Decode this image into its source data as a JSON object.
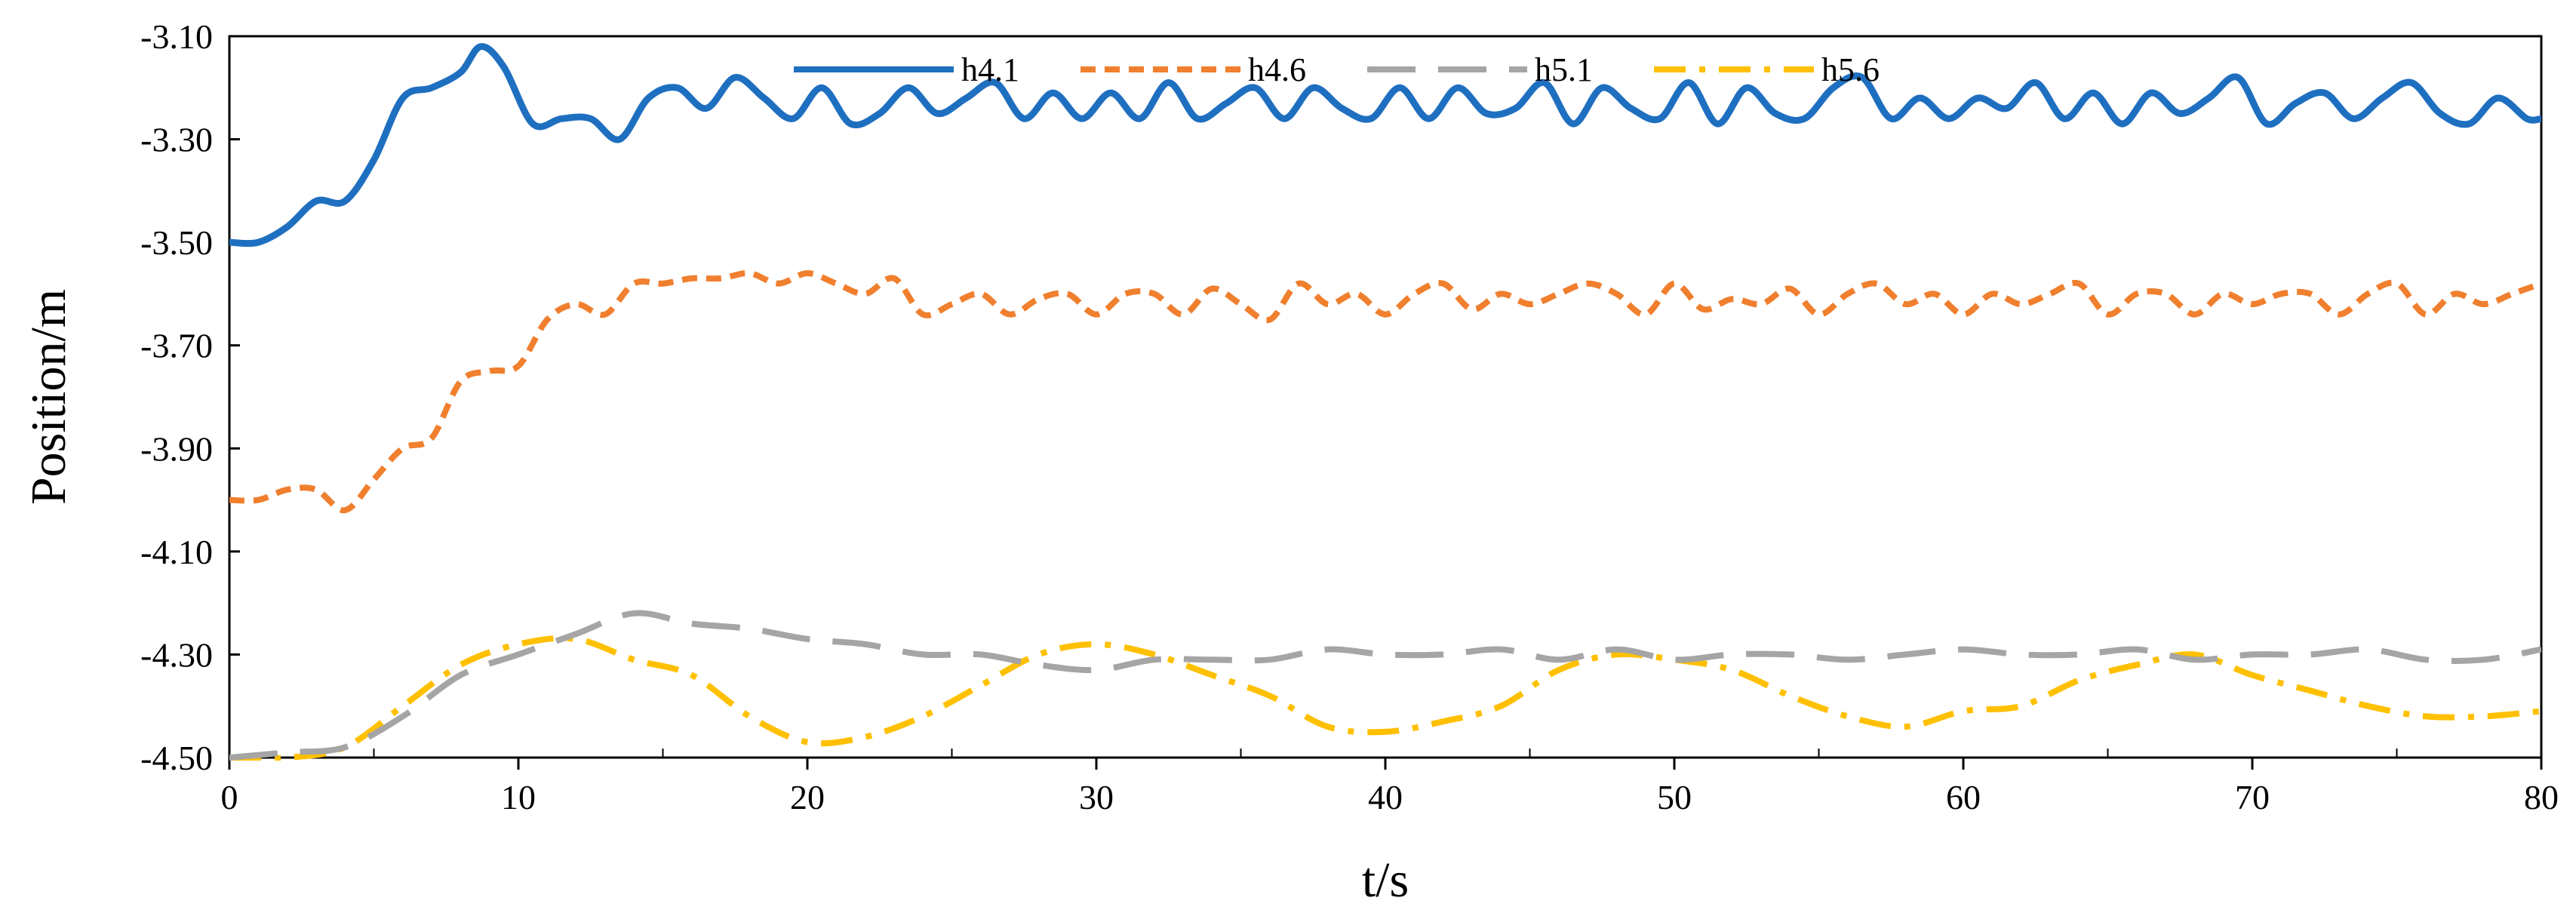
{
  "chart_data": {
    "type": "line",
    "title": "",
    "xlabel": "t/s",
    "ylabel": "Position/m",
    "xlim": [
      0,
      80
    ],
    "ylim": [
      -4.5,
      -3.1
    ],
    "x_ticks": [
      0,
      10,
      20,
      30,
      40,
      50,
      60,
      70,
      80
    ],
    "x_tick_labels": [
      "0",
      "10",
      "20",
      "30",
      "40",
      "50",
      "60",
      "70",
      "80"
    ],
    "y_ticks": [
      -3.1,
      -3.3,
      -3.5,
      -3.7,
      -3.9,
      -4.1,
      -4.3,
      -4.5
    ],
    "y_tick_labels": [
      "-3.10",
      "-3.30",
      "-3.50",
      "-3.70",
      "-3.90",
      "-4.10",
      "-4.30",
      "-4.50"
    ],
    "grid": false,
    "legend_position": "top-center",
    "series": [
      {
        "name": "h4.1",
        "color": "#1f6fc0",
        "dash": "solid",
        "x": [
          0,
          1,
          2,
          3,
          4,
          5,
          6,
          7,
          8,
          8.7,
          9.5,
          10.5,
          11.5,
          12.5,
          13.5,
          14.5,
          15.5,
          16.5,
          17.5,
          18.5,
          19.5,
          20.5,
          21.5,
          22.5,
          23.5,
          24.5,
          25.5,
          26.5,
          27.5,
          28.5,
          29.5,
          30.5,
          31.5,
          32.5,
          33.5,
          34.5,
          35.5,
          36.5,
          37.5,
          38.5,
          39.5,
          40.5,
          41.5,
          42.5,
          43.5,
          44.5,
          45.5,
          46.5,
          47.5,
          48.5,
          49.5,
          50.5,
          51.5,
          52.5,
          53.5,
          54.5,
          55.5,
          56.5,
          57.5,
          58.5,
          59.5,
          60.5,
          61.5,
          62.5,
          63.5,
          64.5,
          65.5,
          66.5,
          67.5,
          68.5,
          69.5,
          70.5,
          71.5,
          72.5,
          73.5,
          74.5,
          75.5,
          76.5,
          77.5,
          78.5,
          79.5,
          80
        ],
        "y": [
          -3.5,
          -3.5,
          -3.47,
          -3.42,
          -3.42,
          -3.34,
          -3.22,
          -3.2,
          -3.17,
          -3.12,
          -3.16,
          -3.27,
          -3.26,
          -3.26,
          -3.3,
          -3.22,
          -3.2,
          -3.24,
          -3.18,
          -3.22,
          -3.26,
          -3.2,
          -3.27,
          -3.25,
          -3.2,
          -3.25,
          -3.22,
          -3.19,
          -3.26,
          -3.21,
          -3.26,
          -3.21,
          -3.26,
          -3.19,
          -3.26,
          -3.23,
          -3.2,
          -3.26,
          -3.2,
          -3.24,
          -3.26,
          -3.2,
          -3.26,
          -3.2,
          -3.25,
          -3.24,
          -3.19,
          -3.27,
          -3.2,
          -3.24,
          -3.26,
          -3.19,
          -3.27,
          -3.2,
          -3.25,
          -3.26,
          -3.2,
          -3.18,
          -3.26,
          -3.22,
          -3.26,
          -3.22,
          -3.24,
          -3.19,
          -3.26,
          -3.21,
          -3.27,
          -3.21,
          -3.25,
          -3.22,
          -3.18,
          -3.27,
          -3.23,
          -3.21,
          -3.26,
          -3.22,
          -3.19,
          -3.25,
          -3.27,
          -3.22,
          -3.26,
          -3.26
        ]
      },
      {
        "name": "h4.6",
        "color": "#f07f2e",
        "dash": "short-dash",
        "x": [
          0,
          1,
          2,
          3,
          4,
          5,
          6,
          7,
          8,
          9,
          10,
          11,
          12,
          13,
          14,
          15,
          16,
          17,
          18,
          19,
          20,
          21,
          22,
          23,
          24,
          25,
          26,
          27,
          28,
          29,
          30,
          31,
          32,
          33,
          34,
          35,
          36,
          37,
          38,
          39,
          40,
          41,
          42,
          43,
          44,
          45,
          46,
          47,
          48,
          49,
          50,
          51,
          52,
          53,
          54,
          55,
          56,
          57,
          58,
          59,
          60,
          61,
          62,
          63,
          64,
          65,
          66,
          67,
          68,
          69,
          70,
          71,
          72,
          73,
          74,
          75,
          76,
          77,
          78,
          79,
          80
        ],
        "y": [
          -4.0,
          -4.0,
          -3.98,
          -3.98,
          -4.02,
          -3.96,
          -3.9,
          -3.88,
          -3.77,
          -3.75,
          -3.74,
          -3.65,
          -3.62,
          -3.64,
          -3.58,
          -3.58,
          -3.57,
          -3.57,
          -3.56,
          -3.58,
          -3.56,
          -3.58,
          -3.6,
          -3.57,
          -3.64,
          -3.62,
          -3.6,
          -3.64,
          -3.61,
          -3.6,
          -3.64,
          -3.6,
          -3.6,
          -3.64,
          -3.59,
          -3.62,
          -3.65,
          -3.58,
          -3.62,
          -3.6,
          -3.64,
          -3.6,
          -3.58,
          -3.63,
          -3.6,
          -3.62,
          -3.6,
          -3.58,
          -3.6,
          -3.64,
          -3.58,
          -3.63,
          -3.61,
          -3.62,
          -3.59,
          -3.64,
          -3.6,
          -3.58,
          -3.62,
          -3.6,
          -3.64,
          -3.6,
          -3.62,
          -3.6,
          -3.58,
          -3.64,
          -3.6,
          -3.6,
          -3.64,
          -3.6,
          -3.62,
          -3.6,
          -3.6,
          -3.64,
          -3.6,
          -3.58,
          -3.64,
          -3.6,
          -3.62,
          -3.6,
          -3.58
        ]
      },
      {
        "name": "h5.1",
        "color": "#a5a5a5",
        "dash": "long-dash",
        "x": [
          0,
          2,
          4,
          6,
          8,
          10,
          12,
          14,
          16,
          18,
          20,
          22,
          24,
          26,
          28,
          30,
          32,
          34,
          36,
          38,
          40,
          42,
          44,
          46,
          48,
          50,
          52,
          54,
          56,
          58,
          60,
          62,
          64,
          66,
          68,
          70,
          72,
          74,
          76,
          78,
          80
        ],
        "y": [
          -4.5,
          -4.49,
          -4.48,
          -4.42,
          -4.34,
          -4.3,
          -4.26,
          -4.22,
          -4.24,
          -4.25,
          -4.27,
          -4.28,
          -4.3,
          -4.3,
          -4.32,
          -4.33,
          -4.31,
          -4.31,
          -4.31,
          -4.29,
          -4.3,
          -4.3,
          -4.29,
          -4.31,
          -4.29,
          -4.31,
          -4.3,
          -4.3,
          -4.31,
          -4.3,
          -4.29,
          -4.3,
          -4.3,
          -4.29,
          -4.31,
          -4.3,
          -4.3,
          -4.29,
          -4.31,
          -4.31,
          -4.29
        ]
      },
      {
        "name": "h5.6",
        "color": "#ffc000",
        "dash": "dash-dot",
        "x": [
          0,
          2,
          4,
          6,
          8,
          10,
          12,
          14,
          16,
          18,
          20,
          22,
          24,
          26,
          28,
          30,
          32,
          34,
          36,
          38,
          40,
          42,
          44,
          46,
          48,
          50,
          52,
          54,
          56,
          58,
          60,
          62,
          64,
          66,
          68,
          70,
          72,
          74,
          76,
          78,
          80
        ],
        "y": [
          -4.5,
          -4.5,
          -4.48,
          -4.4,
          -4.32,
          -4.28,
          -4.27,
          -4.31,
          -4.34,
          -4.42,
          -4.47,
          -4.46,
          -4.42,
          -4.36,
          -4.3,
          -4.28,
          -4.3,
          -4.34,
          -4.38,
          -4.44,
          -4.45,
          -4.43,
          -4.4,
          -4.33,
          -4.3,
          -4.31,
          -4.33,
          -4.38,
          -4.42,
          -4.44,
          -4.41,
          -4.4,
          -4.35,
          -4.32,
          -4.3,
          -4.34,
          -4.37,
          -4.4,
          -4.42,
          -4.42,
          -4.41
        ]
      }
    ]
  }
}
